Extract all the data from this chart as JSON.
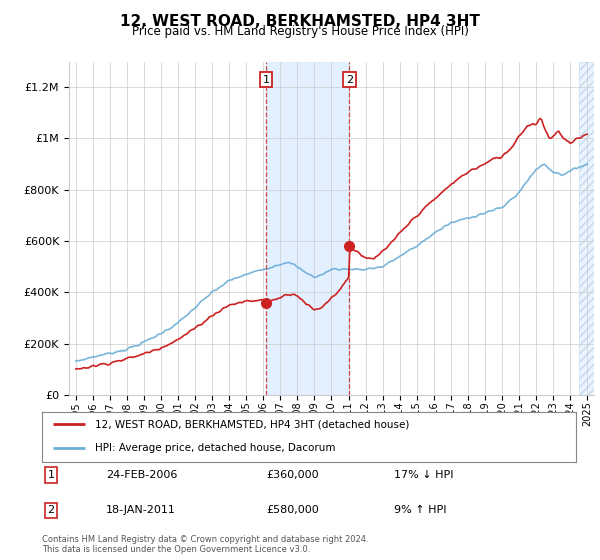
{
  "title": "12, WEST ROAD, BERKHAMSTED, HP4 3HT",
  "subtitle": "Price paid vs. HM Land Registry's House Price Index (HPI)",
  "ylim": [
    0,
    1300000
  ],
  "yticks": [
    0,
    200000,
    400000,
    600000,
    800000,
    1000000,
    1200000
  ],
  "ytick_labels": [
    "£0",
    "£200K",
    "£400K",
    "£600K",
    "£800K",
    "£1M",
    "£1.2M"
  ],
  "xtick_years": [
    1995,
    1996,
    1997,
    1998,
    1999,
    2000,
    2001,
    2002,
    2003,
    2004,
    2005,
    2006,
    2007,
    2008,
    2009,
    2010,
    2011,
    2012,
    2013,
    2014,
    2015,
    2016,
    2017,
    2018,
    2019,
    2020,
    2021,
    2022,
    2023,
    2024,
    2025
  ],
  "hpi_color": "#6baed6",
  "price_color": "#cc2222",
  "sale1_x": 2006.15,
  "sale1_y": 360000,
  "sale2_x": 2011.04,
  "sale2_y": 580000,
  "shade_x1": 2006.15,
  "shade_x2": 2011.04,
  "hatch_x1": 2024.5,
  "hatch_x2": 2025.4,
  "legend_house": "12, WEST ROAD, BERKHAMSTED, HP4 3HT (detached house)",
  "legend_hpi": "HPI: Average price, detached house, Dacorum",
  "table_row1_num": "1",
  "table_row1_date": "24-FEB-2006",
  "table_row1_price": "£360,000",
  "table_row1_hpi": "17% ↓ HPI",
  "table_row2_num": "2",
  "table_row2_date": "18-JAN-2011",
  "table_row2_price": "£580,000",
  "table_row2_hpi": "9% ↑ HPI",
  "footer": "Contains HM Land Registry data © Crown copyright and database right 2024.\nThis data is licensed under the Open Government Licence v3.0.",
  "xmin": 1994.6,
  "xmax": 2025.4
}
